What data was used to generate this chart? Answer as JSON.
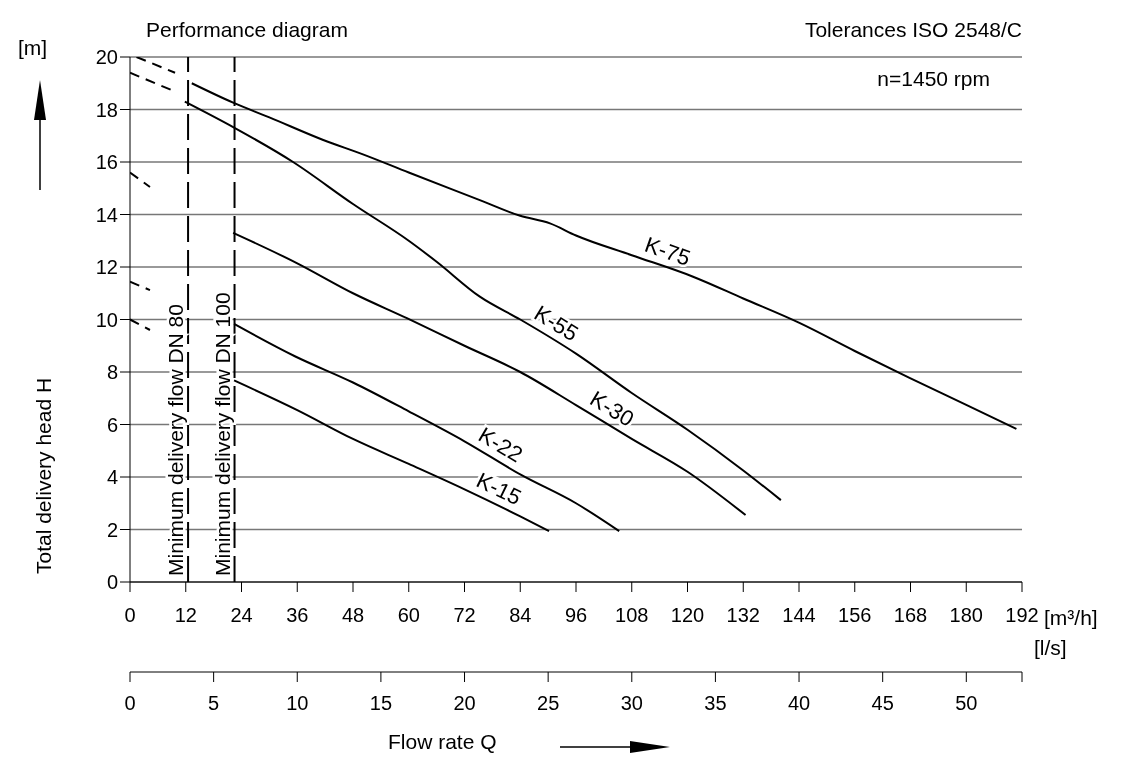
{
  "chart_data": {
    "type": "line",
    "title": "Performance diagram",
    "subtitle": "Tolerances ISO 2548/C",
    "xlabel": "Flow rate Q",
    "ylabel": "Total delivery head H",
    "x2label": "[l/s]",
    "annotations": [
      "[m]",
      "[m³/h]",
      "n=1450 rpm"
    ],
    "xlim": [
      0,
      192
    ],
    "xticks": [
      0,
      12,
      24,
      36,
      48,
      60,
      72,
      84,
      96,
      108,
      120,
      132,
      144,
      156,
      168,
      180,
      192
    ],
    "x2lim": [
      0,
      53.33
    ],
    "x2ticks": [
      0,
      5,
      10,
      15,
      20,
      25,
      30,
      35,
      40,
      45,
      50
    ],
    "ylim": [
      0,
      20
    ],
    "yticks": [
      0,
      2,
      4,
      6,
      8,
      10,
      12,
      14,
      16,
      18,
      20
    ],
    "grid": true,
    "legend": false,
    "marker": "none",
    "ref_lines": [
      {
        "axis": "x",
        "value": 12.5,
        "label": "Minimum delivery flow DN 80",
        "color": "#000000",
        "line_style": "dashed"
      },
      {
        "axis": "x",
        "value": 22.5,
        "label": "Minimum delivery flow DN 100",
        "color": "#000000",
        "line_style": "dashed"
      }
    ],
    "series": [
      {
        "name": "K-75",
        "color": "#000000",
        "x": [
          13.3,
          22.2,
          30,
          41.6,
          50,
          60,
          75.3,
          84,
          90.4,
          96,
          108,
          121.2,
          132,
          144.2,
          156,
          167.9,
          180,
          190.8
        ],
        "values": [
          19.0,
          18.26,
          17.7,
          16.84,
          16.3,
          15.6,
          14.55,
          13.95,
          13.66,
          13.2,
          12.45,
          11.63,
          10.8,
          9.86,
          8.8,
          7.77,
          6.75,
          5.83
        ]
      },
      {
        "name": "K-55",
        "color": "#000000",
        "x": [
          11.8,
          22.2,
          35.1,
          48,
          60,
          66,
          75.3,
          84,
          96,
          108,
          120,
          132,
          140.1
        ],
        "values": [
          18.3,
          17.33,
          16.0,
          14.4,
          13.0,
          12.2,
          10.87,
          10.0,
          8.7,
          7.2,
          5.8,
          4.25,
          3.12
        ]
      },
      {
        "name": "K-30",
        "color": "#000000",
        "x": [
          22.2,
          35.9,
          48,
          59.6,
          72,
          84,
          96,
          108,
          120,
          132.5
        ],
        "values": [
          13.3,
          12.15,
          11.0,
          10.05,
          9.0,
          8.0,
          6.74,
          5.45,
          4.2,
          2.55
        ]
      },
      {
        "name": "K-22",
        "color": "#000000",
        "x": [
          22.4,
          35.6,
          48,
          60,
          71.9,
          84.2,
          96,
          105.3
        ],
        "values": [
          9.83,
          8.59,
          7.6,
          6.5,
          5.37,
          4.08,
          3.0,
          1.94
        ]
      },
      {
        "name": "K-15",
        "color": "#000000",
        "x": [
          22.4,
          36,
          48,
          60,
          71.9,
          84,
          90.2
        ],
        "values": [
          7.68,
          6.55,
          5.45,
          4.5,
          3.54,
          2.5,
          1.94
        ]
      },
      {
        "color": "#000000",
        "line_style": "dashed",
        "x": [
          1.4,
          9.7
        ],
        "values": [
          20.0,
          19.4
        ]
      },
      {
        "color": "#000000",
        "line_style": "dashed",
        "x": [
          0,
          9.5
        ],
        "values": [
          19.4,
          18.7
        ]
      },
      {
        "color": "#000000",
        "line_style": "dashed",
        "x": [
          0,
          4.3
        ],
        "values": [
          15.6,
          15.05
        ]
      },
      {
        "color": "#000000",
        "line_style": "dashed",
        "x": [
          0,
          4.3
        ],
        "values": [
          11.44,
          11.12
        ]
      },
      {
        "color": "#000000",
        "line_style": "dashed",
        "x": [
          0,
          4.3
        ],
        "values": [
          10.0,
          9.6
        ]
      }
    ]
  }
}
